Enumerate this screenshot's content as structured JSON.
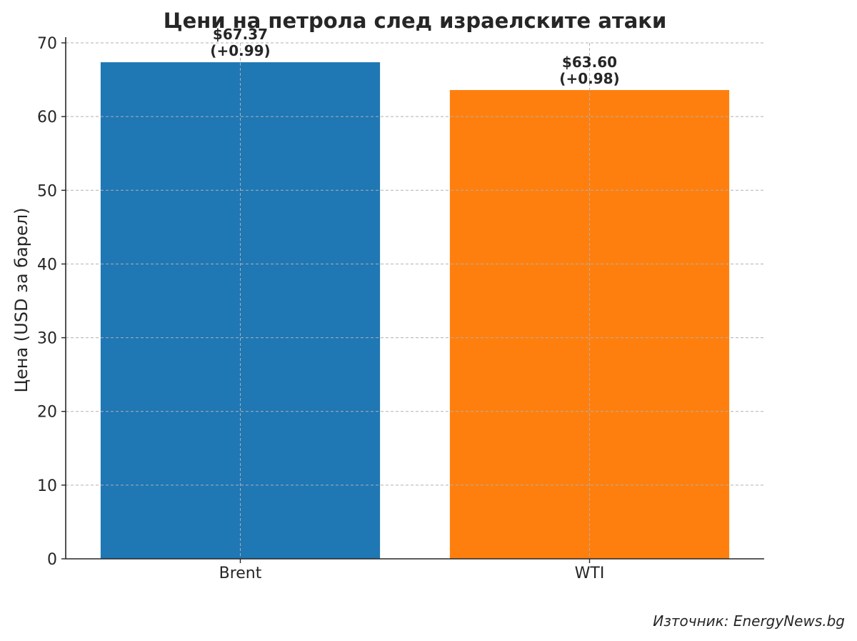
{
  "chart_data": {
    "type": "bar",
    "title": "Цени на петрола след израелските атаки",
    "xlabel": "",
    "ylabel": "Цена (USD за барел)",
    "categories": [
      "Brent",
      "WTI"
    ],
    "values": [
      67.37,
      63.6
    ],
    "data_labels": [
      {
        "price": "$67.37",
        "change": "(+0.99)"
      },
      {
        "price": "$63.60",
        "change": "(+0.98)"
      }
    ],
    "colors": [
      "#1f77b4",
      "#ff7f0e"
    ],
    "ylim": [
      0,
      70
    ],
    "yticks": [
      0,
      10,
      20,
      30,
      40,
      50,
      60,
      70
    ],
    "grid": true
  },
  "source_note": "Източник: EnergyNews.bg"
}
